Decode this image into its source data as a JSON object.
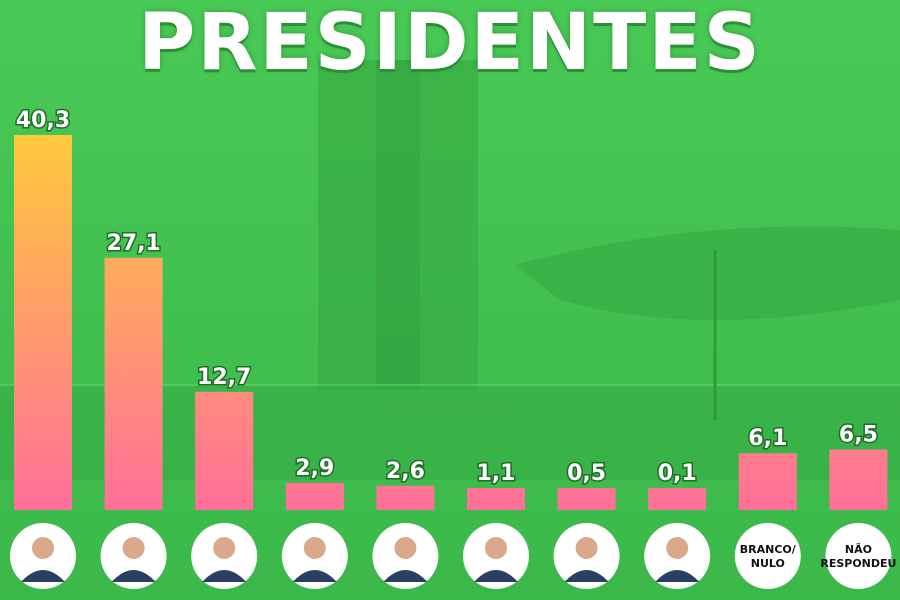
{
  "chart_data": {
    "type": "bar",
    "title": "PRESIDENTES",
    "categories": [
      "candidate-1",
      "candidate-2",
      "candidate-3",
      "candidate-4",
      "candidate-5",
      "candidate-6",
      "candidate-7",
      "candidate-8",
      "BRANCO/ NULO",
      "NÃO RESPONDEU"
    ],
    "value_labels": [
      "40,3",
      "27,1",
      "12,7",
      "2,9",
      "2,6",
      "1,1",
      "0,5",
      "0,1",
      "6,1",
      "6,5"
    ],
    "values": [
      40.3,
      27.1,
      12.7,
      2.9,
      2.6,
      1.1,
      0.5,
      0.1,
      6.1,
      6.5
    ],
    "ylim": [
      0,
      40.3
    ],
    "grid": false,
    "bar_gradient": [
      "#ffc93c",
      "#ff6f9a"
    ],
    "text_categories": [
      "BRANCO/\nNULO",
      "NÃO\nRESPONDEU"
    ]
  },
  "colors": {
    "background": "#3fc24f",
    "bar_bottom": "#ff6f9a",
    "bar_top": "#ffc93c",
    "avatar_ring": "#ffffff"
  },
  "icons": [
    "avatar-icon"
  ]
}
